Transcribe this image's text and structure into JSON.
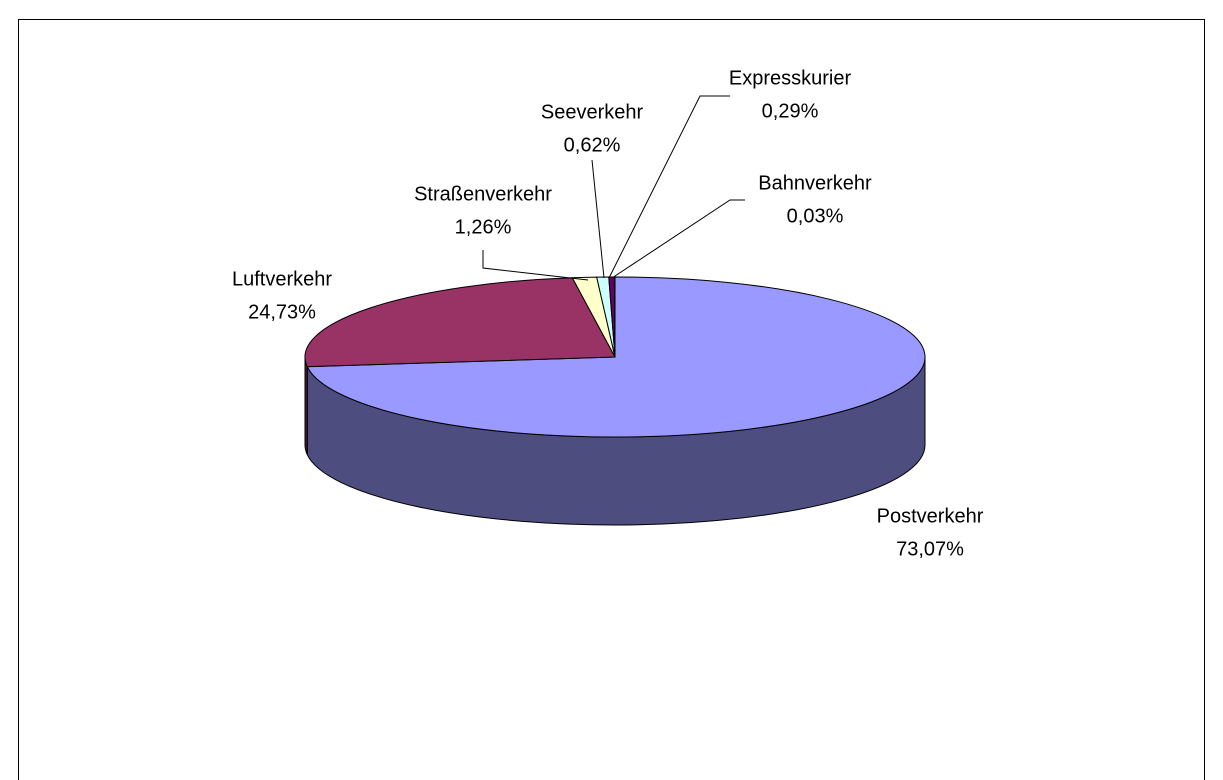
{
  "chart_data": {
    "type": "pie",
    "three_d": true,
    "categories": [
      "Postverkehr",
      "Luftverkehr",
      "Straßenverkehr",
      "Seeverkehr",
      "Expresskurier",
      "Bahnverkehr"
    ],
    "values": [
      73.07,
      24.73,
      1.26,
      0.62,
      0.29,
      0.03
    ],
    "value_labels": [
      "73,07%",
      "24,73%",
      "1,26%",
      "0,62%",
      "0,29%",
      "0,03%"
    ],
    "colors": [
      "#9999ff",
      "#993366",
      "#ffffcc",
      "#ccffff",
      "#660066",
      "#ff8080"
    ]
  }
}
